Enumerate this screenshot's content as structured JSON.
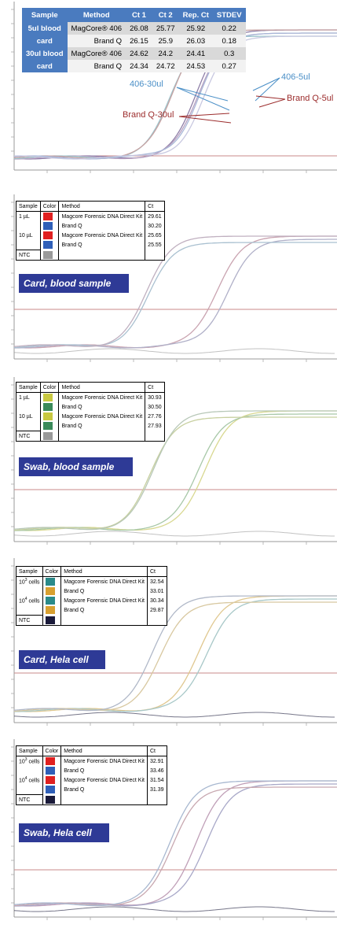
{
  "chart_data": [
    {
      "type": "line",
      "table": {
        "headers": [
          "Sample",
          "Method",
          "Ct 1",
          "Ct 2",
          "Rep. Ct",
          "STDEV"
        ],
        "groups": [
          {
            "sample_line1": "5ul blood",
            "sample_line2": "card",
            "rows": [
              [
                "MagCore® 406",
                "26.08",
                "25.77",
                "25.92",
                "0.22"
              ],
              [
                "Brand Q",
                "26.15",
                "25.9",
                "26.03",
                "0.18"
              ]
            ]
          },
          {
            "sample_line1": "30ul blood",
            "sample_line2": "card",
            "rows": [
              [
                "MagCore® 406",
                "24.62",
                "24.2",
                "24.41",
                "0.3"
              ],
              [
                "Brand Q",
                "24.34",
                "24.72",
                "24.53",
                "0.27"
              ]
            ]
          }
        ]
      },
      "annotations": [
        "406-30ul",
        "406-5ul",
        "Brand Q-5ul",
        "Brand Q-30ul"
      ],
      "annotation_colors": {
        "406": "#4a8fc7",
        "brandq": "#9b2b2b"
      },
      "series_ct": [
        25.92,
        26.03,
        24.41,
        24.53
      ],
      "curve_colors": [
        "#8f7fa8",
        "#b7a0c0",
        "#9cc4cc",
        "#c7a3a3",
        "#a8b8d8",
        "#c8c8e0"
      ]
    },
    {
      "type": "line",
      "banner": "Card, blood sample",
      "table": {
        "headers": [
          "Sample",
          "Color",
          "Method",
          "Ct"
        ],
        "rows": [
          {
            "sample": "1 µL",
            "color": "#e02020",
            "method": "Magcore Forensic DNA Direct Kit",
            "ct": "29.61"
          },
          {
            "sample": "",
            "color": "#2f5fb8",
            "method": "Brand Q",
            "ct": "30.20"
          },
          {
            "sample": "10 µL",
            "color": "#e02020",
            "method": "Magcore Forensic DNA Direct Kit",
            "ct": "25.65"
          },
          {
            "sample": "",
            "color": "#2f5fb8",
            "method": "Brand Q",
            "ct": "25.55"
          },
          {
            "sample": "NTC",
            "color": "#9a9a9a",
            "method": "",
            "ct": ""
          }
        ]
      },
      "series_ct": [
        29.61,
        30.2,
        25.65,
        25.55
      ],
      "curve_colors": [
        "#c9a3b0",
        "#b0b0c8",
        "#a9c0d0",
        "#c0b0c0"
      ]
    },
    {
      "type": "line",
      "banner": "Swab, blood sample",
      "table": {
        "headers": [
          "Sample",
          "Color",
          "Method",
          "Ct"
        ],
        "rows": [
          {
            "sample": "1 µL",
            "color": "#c8c840",
            "method": "Magcore Forensic DNA Direct Kit",
            "ct": "30.93"
          },
          {
            "sample": "",
            "color": "#3a8a5a",
            "method": "Brand Q",
            "ct": "30.50"
          },
          {
            "sample": "10 µL",
            "color": "#c8c840",
            "method": "Magcore Forensic DNA Direct Kit",
            "ct": "27.76"
          },
          {
            "sample": "",
            "color": "#3a8a5a",
            "method": "Brand Q",
            "ct": "27.93"
          },
          {
            "sample": "NTC",
            "color": "#9a9a9a",
            "method": "",
            "ct": ""
          }
        ]
      },
      "series_ct": [
        30.93,
        30.5,
        27.76,
        27.93
      ],
      "curve_colors": [
        "#d8d890",
        "#a8c8a8",
        "#c8d0a0",
        "#b8c8b8"
      ]
    },
    {
      "type": "line",
      "banner": "Card, Hela cell",
      "table": {
        "headers": [
          "Sample",
          "Color",
          "Method",
          "Ct"
        ],
        "rows": [
          {
            "sample": "10",
            "sup": "3",
            "suffix": " cells",
            "color": "#2a8a8a",
            "method": "Magcore Forensic DNA Direct Kit",
            "ct": "32.54"
          },
          {
            "sample": "",
            "color": "#d8a030",
            "method": "Brand Q",
            "ct": "33.01"
          },
          {
            "sample": "10",
            "sup": "4",
            "suffix": " cells",
            "color": "#2a8a8a",
            "method": "Magcore Forensic DNA Direct Kit",
            "ct": "30.34"
          },
          {
            "sample": "",
            "color": "#d8a030",
            "method": "Brand Q",
            "ct": "29.87"
          },
          {
            "sample": "NTC",
            "color": "#1a1a3a",
            "method": "",
            "ct": ""
          }
        ]
      },
      "series_ct": [
        32.54,
        33.01,
        30.34,
        29.87
      ],
      "curve_colors": [
        "#e0c890",
        "#a8c8c8",
        "#d8c8a0",
        "#b0b8c8"
      ]
    },
    {
      "type": "line",
      "banner": "Swab, Hela cell",
      "table": {
        "headers": [
          "Sample",
          "Color",
          "Method",
          "Ct"
        ],
        "rows": [
          {
            "sample": "10",
            "sup": "3",
            "suffix": " cells",
            "color": "#e02020",
            "method": "Magcore Forensic DNA Direct Kit",
            "ct": "32.91"
          },
          {
            "sample": "",
            "color": "#2f5fb8",
            "method": "Brand Q",
            "ct": "33.46"
          },
          {
            "sample": "10",
            "sup": "4",
            "suffix": " cells",
            "color": "#e02020",
            "method": "Magcore Forensic DNA Direct Kit",
            "ct": "31.54"
          },
          {
            "sample": "",
            "color": "#2f5fb8",
            "method": "Brand Q",
            "ct": "31.39"
          },
          {
            "sample": "NTC",
            "color": "#1a1a3a",
            "method": "",
            "ct": ""
          }
        ]
      },
      "series_ct": [
        32.91,
        33.46,
        31.54,
        31.39
      ],
      "curve_colors": [
        "#c0a0b8",
        "#a8a8c8",
        "#c8a8b0",
        "#a8b8d0"
      ]
    }
  ]
}
